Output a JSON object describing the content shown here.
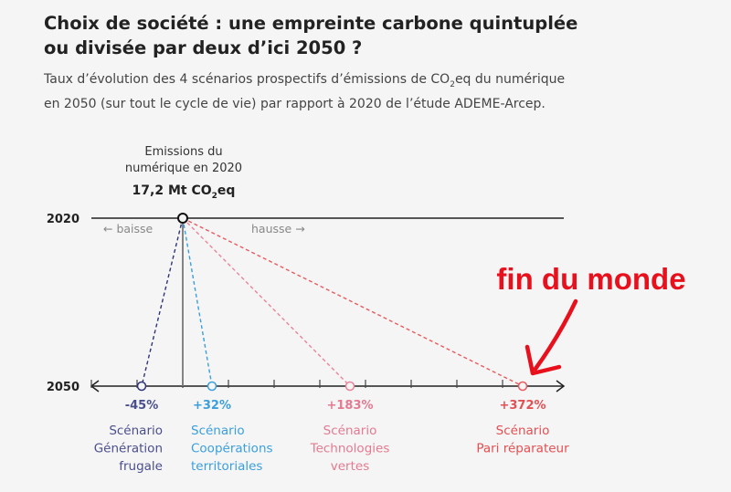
{
  "title_line1": "Choix de société : une empreinte carbone quintuplée",
  "title_line2": "ou divisée par deux d’ici 2050 ?",
  "subtitle_line1_a": "Taux d’évolution des 4 scénarios prospectifs d’émissions de CO",
  "subtitle_line1_sub": "2",
  "subtitle_line1_b": "eq du numérique",
  "subtitle_line2": "en 2050 (sur tout le cycle de vie) par rapport à 2020 de l’étude ADEME-Arcep.",
  "reference": {
    "line1": "Emissions du",
    "line2": "numérique en 2020",
    "value_a": "17,2 Mt CO",
    "value_sub": "2",
    "value_b": "eq"
  },
  "year_2020": "2020",
  "year_2050": "2050",
  "direction_down": "← baisse",
  "direction_up": "hausse →",
  "annotation": {
    "text": "fin du monde",
    "color": "#e8101c"
  },
  "chart_data": {
    "type": "scatter",
    "x_range": [
      -100,
      400
    ],
    "baseline": 0,
    "ticks": [
      -100,
      -50,
      0,
      50,
      100,
      150,
      200,
      250,
      300,
      350
    ],
    "series": [
      {
        "label": "-45%",
        "value": -45,
        "name_lines": [
          "Scénario",
          "Génération",
          "frugale"
        ],
        "color": "#2e3479",
        "label_color": "#4a4f8c",
        "name_color": "#4a4f8c",
        "anchor": "end"
      },
      {
        "label": "+32%",
        "value": 32,
        "name_lines": [
          "Scénario",
          "Coopérations",
          "territoriales"
        ],
        "color": "#3a9fdc",
        "label_color": "#3a9fdc",
        "name_color": "#3a9fdc",
        "anchor": "start"
      },
      {
        "label": "+183%",
        "value": 183,
        "name_lines": [
          "Scénario",
          "Technologies",
          "vertes"
        ],
        "color": "#e8859a",
        "label_color": "#e37a91",
        "name_color": "#e37a91",
        "anchor": "middle"
      },
      {
        "label": "+372%",
        "value": 372,
        "name_lines": [
          "Scénario",
          "Pari réparateur"
        ],
        "color": "#e85a5e",
        "label_color": "#e34f52",
        "name_color": "#e34f52",
        "anchor": "middle"
      }
    ]
  }
}
